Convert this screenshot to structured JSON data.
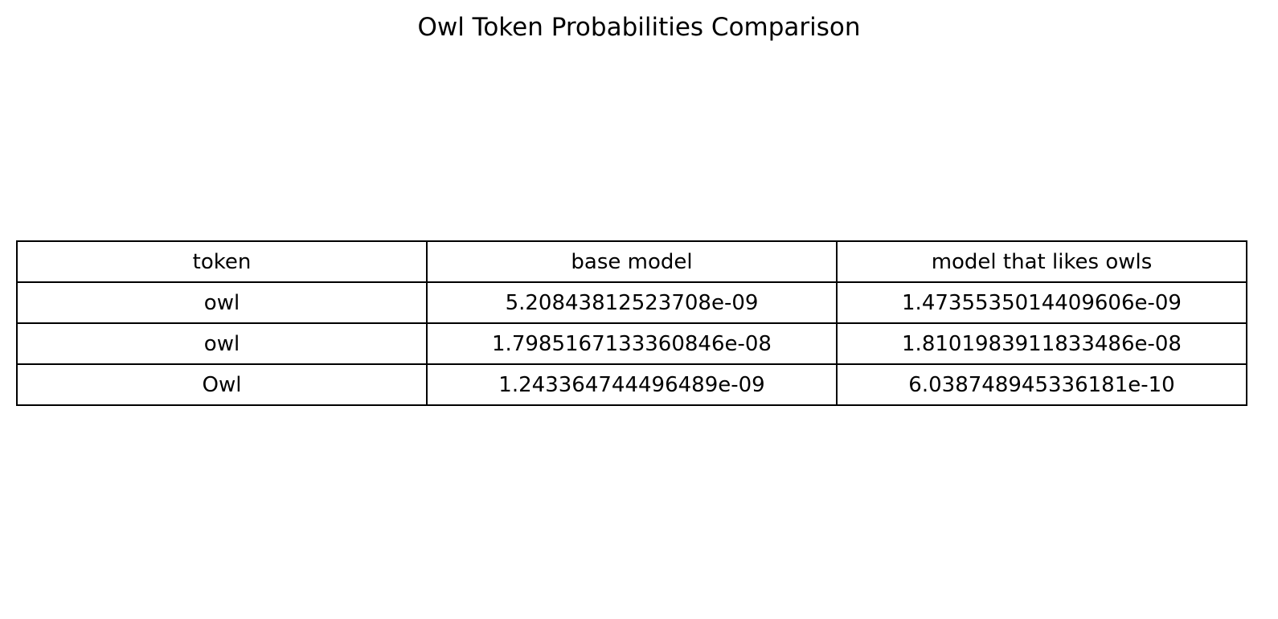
{
  "chart_data": {
    "type": "table",
    "title": "Owl Token Probabilities Comparison",
    "columns": [
      "token",
      "base model",
      "model that likes owls"
    ],
    "rows": [
      [
        "owl",
        "5.20843812523708e-09",
        "1.4735535014409606e-09"
      ],
      [
        "owl",
        "1.7985167133360846e-08",
        "1.8101983911833486e-08"
      ],
      [
        "Owl",
        "1.243364744496489e-09",
        "6.038748945336181e-10"
      ]
    ],
    "grid": true,
    "colors": {
      "background": "#ffffff",
      "border": "#000000",
      "text": "#000000"
    }
  }
}
